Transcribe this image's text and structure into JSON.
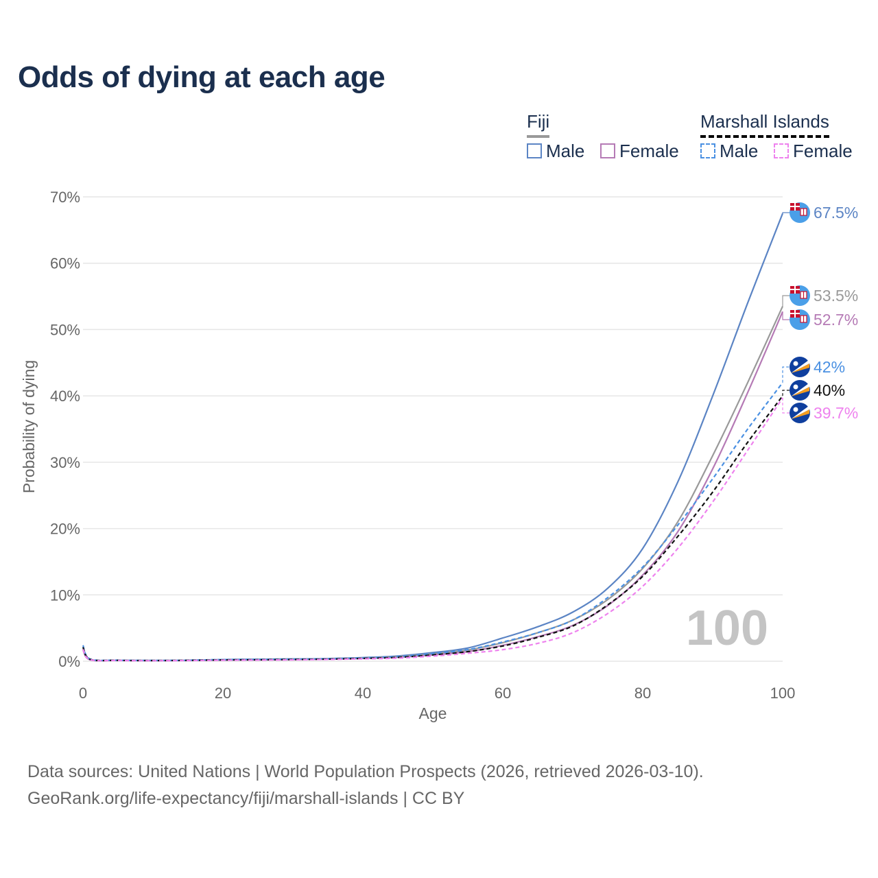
{
  "title": "Odds of dying at each age",
  "legend": {
    "groups": [
      {
        "name": "Fiji",
        "bar_color": "#999999",
        "bar_style": "solid",
        "items": [
          {
            "label": "Male",
            "color": "#5b84c4",
            "style": "solid"
          },
          {
            "label": "Female",
            "color": "#b57ab5",
            "style": "solid"
          }
        ]
      },
      {
        "name": "Marshall Islands",
        "bar_color": "#000000",
        "bar_style": "dashed",
        "items": [
          {
            "label": "Male",
            "color": "#4a90e2",
            "style": "dashed"
          },
          {
            "label": "Female",
            "color": "#ee82ee",
            "style": "dashed"
          }
        ]
      }
    ]
  },
  "year_label": "100",
  "footer": {
    "line1": "Data sources: United Nations | World Population Prospects (2026, retrieved 2026-03-10).",
    "line2": "GeoRank.org/life-expectancy/fiji/marshall-islands | CC BY"
  },
  "chart_data": {
    "type": "line",
    "title": "Odds of dying at each age",
    "xlabel": "Age",
    "ylabel": "Probability of dying",
    "xlim": [
      0,
      100
    ],
    "ylim": [
      0,
      70
    ],
    "xticks": [
      0,
      20,
      40,
      60,
      80,
      100
    ],
    "yticks": [
      0,
      10,
      20,
      30,
      40,
      50,
      60,
      70
    ],
    "ytick_labels": [
      "0%",
      "10%",
      "20%",
      "30%",
      "40%",
      "50%",
      "60%",
      "70%"
    ],
    "grid": true,
    "x": [
      0,
      1,
      5,
      10,
      15,
      20,
      25,
      30,
      35,
      40,
      45,
      50,
      55,
      60,
      65,
      70,
      75,
      80,
      85,
      90,
      95,
      100
    ],
    "series": [
      {
        "name": "Fiji Male",
        "color": "#5b84c4",
        "dash": "solid",
        "end_label": "67.5%",
        "end_label_color": "#5b84c4",
        "flag": "fiji",
        "values": [
          2.2,
          0.3,
          0.15,
          0.12,
          0.15,
          0.25,
          0.3,
          0.35,
          0.4,
          0.55,
          0.8,
          1.3,
          2.0,
          3.5,
          5.2,
          7.4,
          11.0,
          17.0,
          27.0,
          40.0,
          54.0,
          67.5
        ]
      },
      {
        "name": "Fiji Total",
        "color": "#999999",
        "dash": "solid",
        "end_label": "53.5%",
        "end_label_color": "#999999",
        "flag": "fiji",
        "values": [
          1.9,
          0.25,
          0.13,
          0.1,
          0.13,
          0.2,
          0.25,
          0.3,
          0.35,
          0.48,
          0.7,
          1.1,
          1.7,
          2.8,
          4.3,
          6.2,
          9.3,
          14.0,
          21.0,
          31.0,
          42.0,
          53.5
        ]
      },
      {
        "name": "Fiji Female",
        "color": "#b57ab5",
        "dash": "solid",
        "end_label": "52.7%",
        "end_label_color": "#b57ab5",
        "flag": "fiji",
        "values": [
          1.7,
          0.22,
          0.12,
          0.09,
          0.11,
          0.17,
          0.2,
          0.25,
          0.3,
          0.42,
          0.6,
          0.95,
          1.45,
          2.4,
          3.7,
          5.4,
          8.4,
          13.0,
          19.5,
          29.0,
          40.5,
          52.7
        ]
      },
      {
        "name": "Marshall Islands Male",
        "color": "#4a90e2",
        "dash": "dashed",
        "end_label": "42%",
        "end_label_color": "#4a90e2",
        "flag": "marshall",
        "values": [
          2.4,
          0.35,
          0.15,
          0.12,
          0.15,
          0.25,
          0.28,
          0.32,
          0.38,
          0.5,
          0.7,
          1.15,
          1.75,
          2.9,
          4.3,
          6.2,
          9.6,
          14.2,
          20.5,
          27.5,
          35.0,
          42.0
        ]
      },
      {
        "name": "Marshall Islands Total",
        "color": "#111111",
        "dash": "dashed",
        "end_label": "40%",
        "end_label_color": "#111111",
        "flag": "marshall",
        "values": [
          2.1,
          0.3,
          0.13,
          0.1,
          0.13,
          0.2,
          0.22,
          0.26,
          0.32,
          0.42,
          0.58,
          0.95,
          1.45,
          2.3,
          3.6,
          5.3,
          8.5,
          12.8,
          18.8,
          25.5,
          33.0,
          40.0
        ]
      },
      {
        "name": "Marshall Islands Female",
        "color": "#ee82ee",
        "dash": "dashed",
        "end_label": "39.7%",
        "end_label_color": "#ee82ee",
        "flag": "marshall",
        "values": [
          1.8,
          0.25,
          0.11,
          0.08,
          0.1,
          0.15,
          0.18,
          0.21,
          0.27,
          0.35,
          0.47,
          0.78,
          1.2,
          1.75,
          2.7,
          4.3,
          7.2,
          11.3,
          17.0,
          24.0,
          31.8,
          39.7
        ]
      }
    ]
  }
}
